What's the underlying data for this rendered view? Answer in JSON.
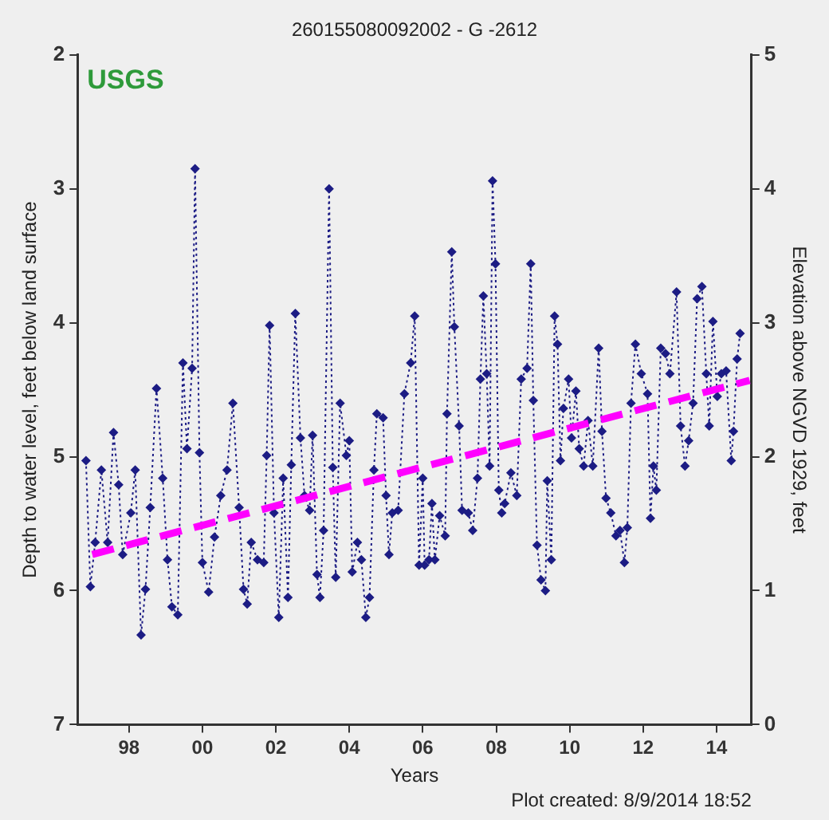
{
  "chart_data": {
    "type": "line",
    "title": "260155080092002 - G -2612",
    "xlabel": "Years",
    "ylabel": "Depth to water level, feet below land surface",
    "y2label": "Elevation above NGVD 1929, feet",
    "annotations": [
      "USGS",
      "Plot created: 8/9/2014 18:52"
    ],
    "xlim": [
      1996.6,
      2014.95
    ],
    "xticks": [
      {
        "value": 1998,
        "label": "98"
      },
      {
        "value": 2000,
        "label": "00"
      },
      {
        "value": 2002,
        "label": "02"
      },
      {
        "value": 2004,
        "label": "04"
      },
      {
        "value": 2006,
        "label": "06"
      },
      {
        "value": 2008,
        "label": "08"
      },
      {
        "value": 2010,
        "label": "10"
      },
      {
        "value": 2012,
        "label": "12"
      },
      {
        "value": 2014,
        "label": "14"
      }
    ],
    "ylim": [
      7,
      2
    ],
    "yticks": [
      2,
      3,
      4,
      5,
      6,
      7
    ],
    "y2lim": [
      0,
      5
    ],
    "y2ticks": [
      0,
      1,
      2,
      3,
      4,
      5
    ],
    "grid": false,
    "legend": false,
    "series": [
      {
        "type": "line",
        "color": "#1c1c84",
        "marker": "diamond",
        "line_style": "dotted",
        "x": [
          1996.83,
          1996.95,
          1997.08,
          1997.25,
          1997.42,
          1997.58,
          1997.72,
          1997.83,
          1998.05,
          1998.17,
          1998.33,
          1998.45,
          1998.58,
          1998.75,
          1998.92,
          1999.05,
          1999.17,
          1999.33,
          1999.47,
          1999.58,
          1999.72,
          1999.8,
          1999.92,
          2000.0,
          2000.17,
          2000.33,
          2000.5,
          2000.67,
          2000.83,
          2001.0,
          2001.12,
          2001.22,
          2001.33,
          2001.5,
          2001.67,
          2001.75,
          2001.83,
          2001.95,
          2002.08,
          2002.2,
          2002.33,
          2002.42,
          2002.53,
          2002.67,
          2002.78,
          2002.92,
          2003.0,
          2003.12,
          2003.2,
          2003.3,
          2003.45,
          2003.55,
          2003.63,
          2003.75,
          2003.92,
          2004.0,
          2004.08,
          2004.22,
          2004.33,
          2004.45,
          2004.55,
          2004.67,
          2004.75,
          2004.92,
          2005.0,
          2005.08,
          2005.17,
          2005.33,
          2005.5,
          2005.67,
          2005.78,
          2005.9,
          2006.0,
          2006.05,
          2006.17,
          2006.25,
          2006.33,
          2006.46,
          2006.61,
          2006.66,
          2006.79,
          2006.86,
          2006.99,
          2007.07,
          2007.24,
          2007.36,
          2007.49,
          2007.57,
          2007.65,
          2007.74,
          2007.82,
          2007.9,
          2007.98,
          2008.07,
          2008.15,
          2008.23,
          2008.4,
          2008.56,
          2008.68,
          2008.84,
          2008.94,
          2009.01,
          2009.11,
          2009.22,
          2009.34,
          2009.39,
          2009.5,
          2009.59,
          2009.67,
          2009.75,
          2009.83,
          2009.97,
          2010.05,
          2010.17,
          2010.26,
          2010.38,
          2010.5,
          2010.63,
          2010.79,
          2010.88,
          2010.99,
          2011.12,
          2011.26,
          2011.37,
          2011.49,
          2011.57,
          2011.67,
          2011.79,
          2011.95,
          2012.12,
          2012.2,
          2012.28,
          2012.36,
          2012.48,
          2012.61,
          2012.73,
          2012.91,
          2013.02,
          2013.14,
          2013.24,
          2013.36,
          2013.47,
          2013.6,
          2013.72,
          2013.8,
          2013.9,
          2014.02,
          2014.13,
          2014.26,
          2014.4,
          2014.46,
          2014.56,
          2014.64
        ],
        "values": [
          5.03,
          5.97,
          5.64,
          5.1,
          5.64,
          4.82,
          5.21,
          5.73,
          5.42,
          5.1,
          6.33,
          5.99,
          5.38,
          4.49,
          5.16,
          5.77,
          6.12,
          6.18,
          4.3,
          4.94,
          4.34,
          2.85,
          4.97,
          5.79,
          6.01,
          5.6,
          5.29,
          5.1,
          4.6,
          5.38,
          5.99,
          6.1,
          5.64,
          5.77,
          5.79,
          4.99,
          4.02,
          5.42,
          6.2,
          5.16,
          6.05,
          5.06,
          3.93,
          4.86,
          5.29,
          5.4,
          4.84,
          5.88,
          6.05,
          5.55,
          3.0,
          5.08,
          5.9,
          4.6,
          4.99,
          4.88,
          5.86,
          5.64,
          5.77,
          6.2,
          6.05,
          5.1,
          4.68,
          4.71,
          5.29,
          5.73,
          5.42,
          5.4,
          4.53,
          4.3,
          3.95,
          5.81,
          5.16,
          5.81,
          5.77,
          5.35,
          5.77,
          5.44,
          5.59,
          4.68,
          3.47,
          4.03,
          4.77,
          5.4,
          5.42,
          5.55,
          5.16,
          4.42,
          3.8,
          4.38,
          5.07,
          2.94,
          3.56,
          5.25,
          5.42,
          5.35,
          5.12,
          5.29,
          4.42,
          4.34,
          3.56,
          4.58,
          5.66,
          5.92,
          6.0,
          5.18,
          5.77,
          3.95,
          4.16,
          5.03,
          4.64,
          4.42,
          4.86,
          4.51,
          4.94,
          5.07,
          4.73,
          5.07,
          4.19,
          4.81,
          5.31,
          5.42,
          5.59,
          5.55,
          5.79,
          5.53,
          4.6,
          4.16,
          4.38,
          4.53,
          5.46,
          5.07,
          5.25,
          4.19,
          4.23,
          4.38,
          3.77,
          4.77,
          5.07,
          4.88,
          4.6,
          3.82,
          3.73,
          4.38,
          4.77,
          3.99,
          4.55,
          4.38,
          4.36,
          5.03,
          4.81,
          4.27,
          4.08
        ]
      },
      {
        "type": "line",
        "color": "#ff00ff",
        "marker": "none",
        "line_style": "dashed",
        "x": [
          1997.0,
          2014.9
        ],
        "values": [
          5.73,
          4.43
        ]
      }
    ]
  }
}
